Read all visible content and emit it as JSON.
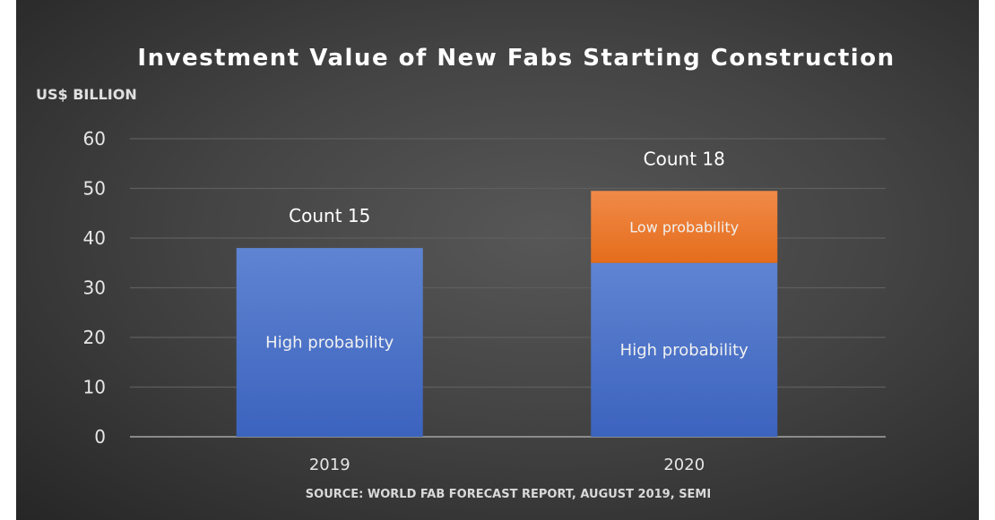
{
  "chart_data": {
    "type": "bar",
    "stacked": true,
    "title": "Investment Value of New Fabs Starting Construction",
    "ylabel": "US$ BILLION",
    "xlabel": "",
    "source": "SOURCE: WORLD FAB FORECAST REPORT, AUGUST 2019, SEMI",
    "categories": [
      "2019",
      "2020"
    ],
    "ylim": [
      0,
      60
    ],
    "yticks": [
      0,
      10,
      20,
      30,
      40,
      50,
      60
    ],
    "grid": true,
    "series": [
      {
        "name": "High probability",
        "values": [
          38,
          35
        ],
        "color": "#4f74c8"
      },
      {
        "name": "Low probability",
        "values": [
          0,
          14.5
        ],
        "color": "#ed7d31"
      }
    ],
    "annotations": [
      "Count 15",
      "Count 18"
    ],
    "colors": {
      "background": "#3a3a3a",
      "text": "#ffffff",
      "grid": "#5e5e5e",
      "axis": "#a6a6a6"
    }
  }
}
